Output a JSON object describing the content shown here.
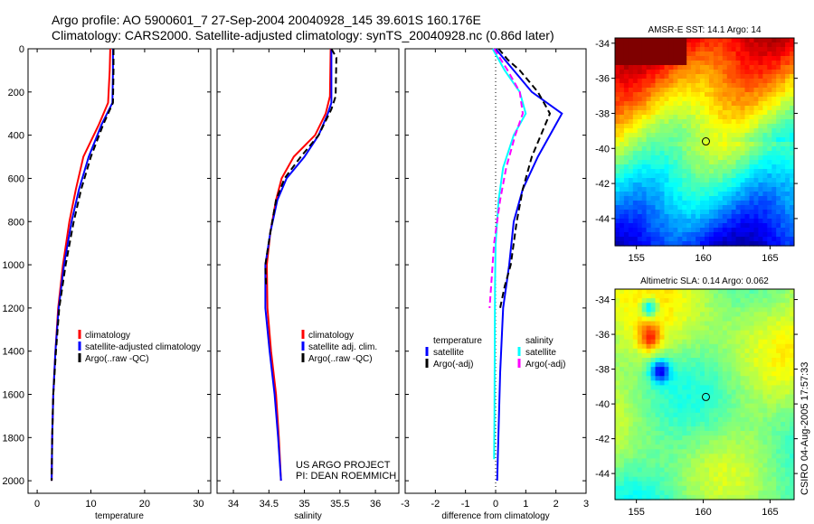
{
  "title": {
    "line1": "Argo profile: AO 5900601_7 27-Sep-2004 20040928_145 39.601S 160.176E",
    "line2": "Climatology: CARS2000. Satellite-adjusted climatology: synTS_20040928.nc (0.86d later)"
  },
  "credits": {
    "project": "US ARGO PROJECT",
    "pi": "PI: DEAN ROEMMICH",
    "stamp": "CSIRO 04-Aug-2005 17:57:33"
  },
  "colors": {
    "climatology": "#ff0000",
    "satellite": "#0000ff",
    "argo": "#000000",
    "sal_sat": "#00ffff",
    "sal_argo": "#ff00ff"
  },
  "chart_data": [
    {
      "type": "line",
      "xlabel": "temperature",
      "ylabel": "",
      "xlim": [
        -1.7,
        32.3
      ],
      "ylim": [
        2058,
        0
      ],
      "xticks": [
        0,
        10,
        20,
        30
      ],
      "yticks": [
        0,
        200,
        400,
        600,
        800,
        1000,
        1200,
        1400,
        1600,
        1800,
        2000
      ],
      "legend": {
        "placement": "bottom-right",
        "entries": [
          "climatology",
          "satellite-adjusted climatology",
          "Argo(..raw -QC)"
        ]
      },
      "series": [
        {
          "name": "climatology",
          "color": "#ff0000",
          "dash": false,
          "depth": [
            0,
            100,
            250,
            350,
            500,
            650,
            800,
            1000,
            1200,
            1400,
            1600,
            1800,
            2000
          ],
          "values": [
            13.6,
            13.5,
            13.2,
            11.5,
            8.6,
            7.2,
            6.0,
            4.8,
            3.9,
            3.4,
            3.0,
            2.8,
            2.7
          ]
        },
        {
          "name": "satellite-adjusted climatology",
          "color": "#0000ff",
          "dash": false,
          "depth": [
            0,
            100,
            250,
            350,
            500,
            650,
            800,
            1000,
            1200,
            1400,
            1600,
            1800,
            2000
          ],
          "values": [
            14.1,
            14.1,
            14.0,
            12.0,
            9.6,
            7.8,
            6.4,
            5.0,
            4.0,
            3.4,
            3.0,
            2.8,
            2.7
          ]
        },
        {
          "name": "Argo(..raw -QC)",
          "color": "#000000",
          "dash": true,
          "depth": [
            0,
            100,
            250,
            350,
            500,
            650,
            800,
            1000,
            1200,
            1400,
            1600,
            1800,
            2000
          ],
          "values": [
            14.2,
            14.2,
            14.1,
            12.3,
            10.0,
            8.2,
            6.8,
            5.3,
            4.1,
            3.5,
            3.0,
            2.8,
            2.7
          ]
        }
      ]
    },
    {
      "type": "line",
      "xlabel": "salinity",
      "ylabel": "",
      "xlim": [
        33.77,
        36.33
      ],
      "ylim": [
        2058,
        0
      ],
      "xticks": [
        34,
        34.5,
        35,
        35.5,
        36
      ],
      "legend": {
        "placement": "bottom-right",
        "entries": [
          "climatology",
          "satellite adj. clim.",
          "Argo(..raw -QC)"
        ]
      },
      "series": [
        {
          "name": "climatology",
          "color": "#ff0000",
          "dash": false,
          "depth": [
            0,
            220,
            300,
            400,
            500,
            600,
            700,
            850,
            1000,
            1200,
            1400,
            1600,
            1800,
            2000
          ],
          "values": [
            35.37,
            35.36,
            35.3,
            35.15,
            34.85,
            34.68,
            34.6,
            34.52,
            34.47,
            34.48,
            34.53,
            34.6,
            34.64,
            34.67
          ]
        },
        {
          "name": "satellite adj. clim.",
          "color": "#0000ff",
          "dash": false,
          "depth": [
            0,
            250,
            300,
            400,
            500,
            600,
            700,
            850,
            1000,
            1200,
            1400,
            1600,
            1800,
            2000
          ],
          "values": [
            35.38,
            35.38,
            35.33,
            35.2,
            35.0,
            34.75,
            34.62,
            34.52,
            34.45,
            34.45,
            34.51,
            34.58,
            34.63,
            34.67
          ]
        },
        {
          "name": "Argo(..raw -QC)",
          "color": "#000000",
          "dash": true,
          "depth": [
            0,
            40,
            220,
            280,
            400,
            500,
            600,
            700,
            850,
            1000,
            1100
          ],
          "values": [
            35.38,
            35.45,
            35.44,
            35.38,
            35.2,
            34.95,
            34.72,
            34.6,
            34.52,
            34.45,
            34.46
          ]
        }
      ]
    },
    {
      "type": "line",
      "xlabel": "difference from climatology",
      "ylabel": "",
      "xlim": [
        -3,
        3
      ],
      "ylim": [
        2058,
        0
      ],
      "xticks": [
        -3,
        -2,
        -1,
        0,
        1,
        2,
        3
      ],
      "zero_line": "dotted",
      "legend": {
        "placement": "bottom",
        "entries": [
          "temperature",
          "satellite",
          "Argo(-adj)",
          "salinity",
          "satellite",
          "Argo(-adj)"
        ]
      },
      "series": [
        {
          "name": "temperature satellite",
          "color": "#0000ff",
          "dash": false,
          "depth": [
            0,
            50,
            100,
            200,
            300,
            400,
            500,
            650,
            800,
            1000,
            1200,
            1500,
            2000
          ],
          "values": [
            0,
            0.3,
            0.6,
            1.2,
            2.2,
            1.8,
            1.4,
            0.9,
            0.6,
            0.45,
            0.25,
            0.15,
            0.05
          ]
        },
        {
          "name": "temperature Argo(-adj)",
          "color": "#000000",
          "dash": true,
          "depth": [
            0,
            50,
            100,
            200,
            300,
            400,
            500,
            650,
            800,
            1000,
            1100,
            1200
          ],
          "values": [
            0.1,
            0.4,
            0.8,
            1.4,
            1.8,
            1.5,
            1.2,
            0.9,
            0.7,
            0.5,
            0.3,
            0.15
          ]
        },
        {
          "name": "salinity satellite",
          "color": "#00ffff",
          "dash": false,
          "depth": [
            0,
            100,
            200,
            300,
            400,
            550,
            700,
            900,
            1100,
            1400,
            1700,
            1900
          ],
          "values": [
            -0.1,
            0.3,
            0.8,
            1.0,
            0.6,
            0.25,
            0.1,
            0.0,
            -0.02,
            -0.03,
            -0.04,
            -0.05
          ]
        },
        {
          "name": "salinity Argo(-adj)",
          "color": "#ff00ff",
          "dash": true,
          "depth": [
            0,
            100,
            200,
            300,
            400,
            550,
            700,
            900,
            1100,
            1200
          ],
          "values": [
            -0.05,
            0.4,
            0.8,
            0.9,
            0.65,
            0.35,
            0.15,
            -0.05,
            -0.15,
            -0.2
          ]
        }
      ]
    },
    {
      "type": "heatmap",
      "title": "AMSR-E SST: 14.1 Argo: 14",
      "xlim": [
        153.4,
        166.8
      ],
      "ylim": [
        -45.55,
        -33.7
      ],
      "xticks": [
        155,
        160,
        165
      ],
      "yticks": [
        -34,
        -36,
        -38,
        -40,
        -42,
        -44
      ],
      "marker": {
        "lon": 160.2,
        "lat": -39.6
      }
    },
    {
      "type": "heatmap",
      "title": "Altimetric SLA: 0.14 Argo: 0.062",
      "xlim": [
        153.4,
        166.8
      ],
      "ylim": [
        -45.5,
        -33.4
      ],
      "xticks": [
        155,
        160,
        165
      ],
      "yticks": [
        -34,
        -36,
        -38,
        -40,
        -42,
        -44
      ],
      "marker": {
        "lon": 160.2,
        "lat": -39.6
      }
    }
  ]
}
